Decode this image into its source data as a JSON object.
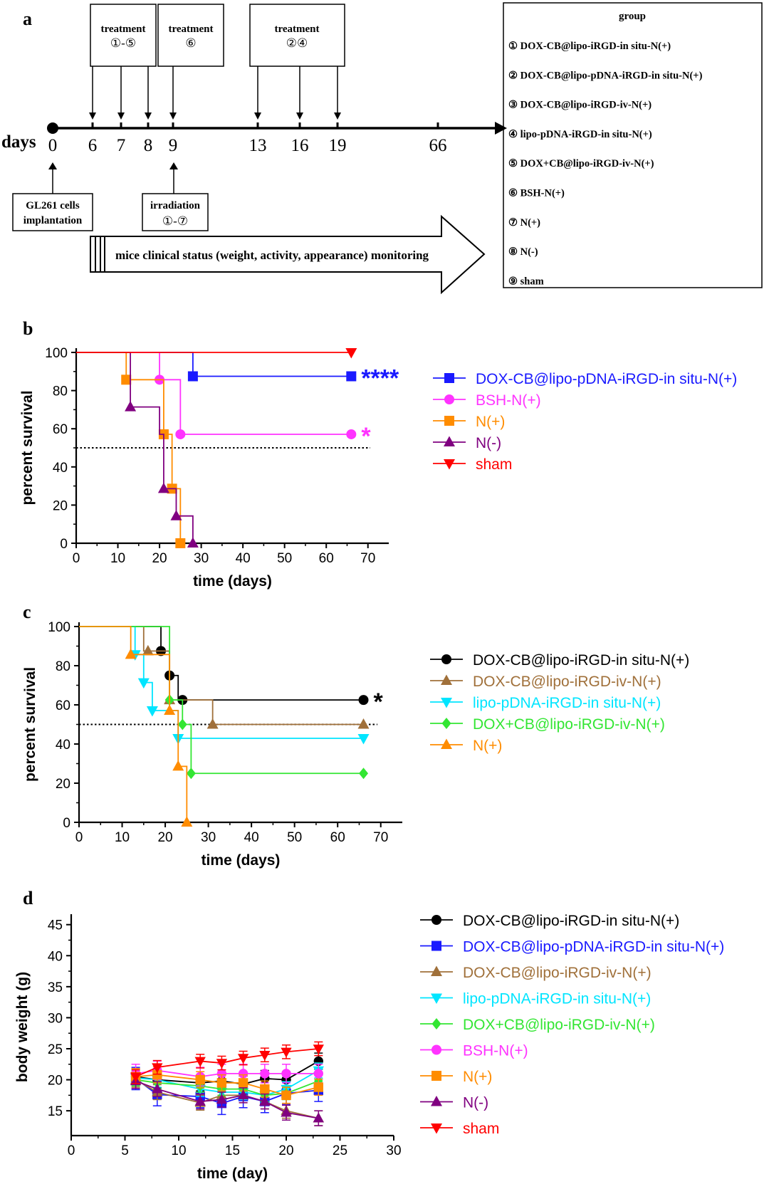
{
  "panel_a": {
    "label": "a",
    "days_label": "days",
    "day_ticks": [
      "0",
      "6",
      "7",
      "8",
      "9",
      "13",
      "16",
      "19",
      "66"
    ],
    "treatment_boxes": [
      {
        "title": "treatment",
        "sub": "①-⑤"
      },
      {
        "title": "treatment",
        "sub": "⑥"
      },
      {
        "title": "treatment",
        "sub": "②④"
      }
    ],
    "implantation_box": [
      "GL261 cells",
      "implantation"
    ],
    "irradiation_box": [
      "irradiation",
      "①-⑦"
    ],
    "monitoring_text": "mice clinical status (weight, activity, appearance) monitoring",
    "group_title": "group",
    "groups": [
      "① DOX-CB@lipo-iRGD-in situ-N(+)",
      "② DOX-CB@lipo-pDNA-iRGD-in situ-N(+)",
      "③ DOX-CB@lipo-iRGD-iv-N(+)",
      "④ lipo-pDNA-iRGD-in situ-N(+)",
      "⑤ DOX+CB@lipo-iRGD-iv-N(+)",
      "⑥ BSH-N(+)",
      "⑦ N(+)",
      "⑧ N(-)",
      "⑨ sham"
    ]
  },
  "colors": {
    "black": "#000000",
    "blue": "#1a1aff",
    "magenta": "#ff33ff",
    "orange": "#ff8c00",
    "purple": "#800080",
    "red": "#ff0000",
    "brown": "#a0703a",
    "cyan": "#00e5ff",
    "green": "#33e633"
  },
  "chart_data": [
    {
      "panel": "b",
      "type": "line",
      "step": true,
      "xlabel": "time (days)",
      "ylabel": "percent survival",
      "xlim": [
        0,
        75
      ],
      "ylim": [
        0,
        100
      ],
      "xticks": [
        "0",
        "10",
        "20",
        "30",
        "40",
        "50",
        "60",
        "70"
      ],
      "yticks": [
        "0",
        "20",
        "40",
        "60",
        "80",
        "100"
      ],
      "reference_line": 50,
      "series": [
        {
          "name": "DOX-CB@lipo-pDNA-iRGD-in situ-N(+)",
          "color": "#1a1aff",
          "marker": "square",
          "points": [
            [
              0,
              100
            ],
            [
              28,
              100
            ],
            [
              28,
              87.5
            ],
            [
              66,
              87.5
            ]
          ],
          "marks": [
            [
              28,
              87.5
            ],
            [
              66,
              87.5
            ]
          ],
          "annotation": "****"
        },
        {
          "name": "BSH-N(+)",
          "color": "#ff33ff",
          "marker": "circle",
          "points": [
            [
              0,
              100
            ],
            [
              20,
              100
            ],
            [
              20,
              85.7
            ],
            [
              25,
              85.7
            ],
            [
              25,
              57.1
            ],
            [
              66,
              57.1
            ]
          ],
          "marks": [
            [
              20,
              85.7
            ],
            [
              25,
              57.1
            ],
            [
              66,
              57.1
            ]
          ],
          "annotation": "*"
        },
        {
          "name": "N(+)",
          "color": "#ff8c00",
          "marker": "square",
          "points": [
            [
              0,
              100
            ],
            [
              12,
              100
            ],
            [
              12,
              85.7
            ],
            [
              21,
              85.7
            ],
            [
              21,
              57.1
            ],
            [
              23,
              57.1
            ],
            [
              23,
              28.6
            ],
            [
              25,
              28.6
            ],
            [
              25,
              0
            ]
          ],
          "marks": [
            [
              12,
              85.7
            ],
            [
              21,
              57.1
            ],
            [
              23,
              28.6
            ],
            [
              25,
              0
            ]
          ],
          "annotation": ""
        },
        {
          "name": "N(-)",
          "color": "#800080",
          "marker": "triangle",
          "points": [
            [
              0,
              100
            ],
            [
              13,
              100
            ],
            [
              13,
              71.4
            ],
            [
              20,
              71.4
            ],
            [
              20,
              57.1
            ],
            [
              21,
              57.1
            ],
            [
              21,
              28.6
            ],
            [
              24,
              28.6
            ],
            [
              24,
              14.3
            ],
            [
              28,
              14.3
            ],
            [
              28,
              0
            ]
          ],
          "marks": [
            [
              13,
              71.4
            ],
            [
              21,
              28.6
            ],
            [
              24,
              14.3
            ],
            [
              28,
              0
            ]
          ],
          "annotation": ""
        },
        {
          "name": "sham",
          "color": "#ff0000",
          "marker": "triangle-down",
          "points": [
            [
              0,
              100
            ],
            [
              66,
              100
            ]
          ],
          "marks": [
            [
              66,
              100
            ]
          ],
          "annotation": ""
        }
      ]
    },
    {
      "panel": "c",
      "type": "line",
      "step": true,
      "xlabel": "time (days)",
      "ylabel": "percent survival",
      "xlim": [
        0,
        75
      ],
      "ylim": [
        0,
        100
      ],
      "xticks": [
        "0",
        "10",
        "20",
        "30",
        "40",
        "50",
        "60",
        "70"
      ],
      "yticks": [
        "0",
        "20",
        "40",
        "60",
        "80",
        "100"
      ],
      "reference_line": 50,
      "series": [
        {
          "name": "DOX-CB@lipo-iRGD-in situ-N(+)",
          "color": "#000000",
          "marker": "circle",
          "points": [
            [
              0,
              100
            ],
            [
              19,
              100
            ],
            [
              19,
              87.5
            ],
            [
              21,
              87.5
            ],
            [
              21,
              75
            ],
            [
              23,
              75
            ],
            [
              23,
              62.5
            ],
            [
              66,
              62.5
            ]
          ],
          "marks": [
            [
              19,
              87.5
            ],
            [
              21,
              75
            ],
            [
              24,
              62.5
            ],
            [
              66,
              62.5
            ]
          ],
          "annotation": "*"
        },
        {
          "name": "DOX-CB@lipo-iRGD-iv-N(+)",
          "color": "#a0703a",
          "marker": "triangle",
          "points": [
            [
              0,
              100
            ],
            [
              15,
              100
            ],
            [
              15,
              87.5
            ],
            [
              21,
              87.5
            ],
            [
              21,
              62.5
            ],
            [
              31,
              62.5
            ],
            [
              31,
              50
            ],
            [
              66,
              50
            ]
          ],
          "marks": [
            [
              16,
              87.5
            ],
            [
              21,
              62.5
            ],
            [
              31,
              50
            ],
            [
              66,
              50
            ]
          ],
          "annotation": ""
        },
        {
          "name": "lipo-pDNA-iRGD-in situ-N(+)",
          "color": "#00e5ff",
          "marker": "triangle-down",
          "points": [
            [
              0,
              100
            ],
            [
              13,
              100
            ],
            [
              13,
              85.7
            ],
            [
              15,
              85.7
            ],
            [
              15,
              71.4
            ],
            [
              17,
              71.4
            ],
            [
              17,
              57.1
            ],
            [
              23,
              57.1
            ],
            [
              23,
              42.9
            ],
            [
              66,
              42.9
            ]
          ],
          "marks": [
            [
              13,
              85.7
            ],
            [
              15,
              71.4
            ],
            [
              17,
              57.1
            ],
            [
              23,
              42.9
            ],
            [
              66,
              42.9
            ]
          ],
          "annotation": ""
        },
        {
          "name": "DOX+CB@lipo-iRGD-iv-N(+)",
          "color": "#33e633",
          "marker": "diamond",
          "points": [
            [
              0,
              100
            ],
            [
              21,
              100
            ],
            [
              21,
              62.5
            ],
            [
              24,
              62.5
            ],
            [
              24,
              50
            ],
            [
              26,
              50
            ],
            [
              26,
              25
            ],
            [
              66,
              25
            ]
          ],
          "marks": [
            [
              21,
              62.5
            ],
            [
              24,
              50
            ],
            [
              26,
              25
            ],
            [
              66,
              25
            ]
          ],
          "annotation": ""
        },
        {
          "name": "N(+)",
          "color": "#ff8c00",
          "marker": "triangle",
          "points": [
            [
              0,
              100
            ],
            [
              12,
              100
            ],
            [
              12,
              85.7
            ],
            [
              21,
              85.7
            ],
            [
              21,
              57.1
            ],
            [
              23,
              57.1
            ],
            [
              23,
              28.6
            ],
            [
              25,
              28.6
            ],
            [
              25,
              0
            ]
          ],
          "marks": [
            [
              12,
              85.7
            ],
            [
              21,
              57.1
            ],
            [
              23,
              28.6
            ],
            [
              25,
              0
            ]
          ],
          "annotation": ""
        }
      ]
    },
    {
      "panel": "d",
      "type": "line",
      "step": false,
      "xlabel": "time (day)",
      "ylabel": "body weight (g)",
      "xlim": [
        0,
        30
      ],
      "ylim": [
        11,
        46
      ],
      "xticks": [
        "0",
        "5",
        "10",
        "15",
        "20",
        "25",
        "30"
      ],
      "yticks": [
        "15",
        "20",
        "25",
        "30",
        "35",
        "40",
        "45"
      ],
      "x": [
        6,
        8,
        12,
        14,
        16,
        18,
        20,
        23
      ],
      "series": [
        {
          "name": "DOX-CB@lipo-iRGD-in situ-N(+)",
          "color": "#000000",
          "marker": "circle",
          "values": [
            20.5,
            20.0,
            19.5,
            19.8,
            19.3,
            20.2,
            20.0,
            23.0
          ],
          "err": 1.3
        },
        {
          "name": "DOX-CB@lipo-pDNA-iRGD-in situ-N(+)",
          "color": "#1a1aff",
          "marker": "square",
          "values": [
            20.2,
            17.6,
            17.3,
            16.2,
            17.3,
            16.5,
            17.8,
            18.3
          ],
          "err": 1.8
        },
        {
          "name": "DOX-CB@lipo-iRGD-iv-N(+)",
          "color": "#a0703a",
          "marker": "triangle",
          "values": [
            20.0,
            18.0,
            16.3,
            17.5,
            17.5,
            16.5,
            15.0,
            13.8
          ],
          "err": 1.2
        },
        {
          "name": "lipo-pDNA-iRGD-in situ-N(+)",
          "color": "#00e5ff",
          "marker": "triangle-down",
          "values": [
            20.3,
            20.0,
            18.5,
            18.0,
            18.0,
            17.5,
            18.5,
            21.5
          ],
          "err": 1.2
        },
        {
          "name": "DOX+CB@lipo-iRGD-iv-N(+)",
          "color": "#33e633",
          "marker": "diamond",
          "values": [
            20.0,
            19.5,
            19.0,
            18.5,
            18.5,
            17.5,
            17.8,
            19.8
          ],
          "err": 1.0
        },
        {
          "name": "BSH-N(+)",
          "color": "#ff33ff",
          "marker": "circle",
          "values": [
            21.0,
            21.5,
            20.5,
            21.0,
            21.0,
            21.0,
            21.0,
            21.0
          ],
          "err": 1.5
        },
        {
          "name": "N(+)",
          "color": "#ff8c00",
          "marker": "square",
          "values": [
            20.5,
            20.8,
            20.0,
            19.5,
            19.5,
            18.5,
            17.5,
            18.8
          ],
          "err": 1.3
        },
        {
          "name": "N(-)",
          "color": "#800080",
          "marker": "triangle",
          "values": [
            19.8,
            18.5,
            16.5,
            16.8,
            17.5,
            16.5,
            14.7,
            13.8
          ],
          "err": 1.2
        },
        {
          "name": "sham",
          "color": "#ff0000",
          "marker": "triangle-down",
          "values": [
            20.5,
            22.0,
            23.0,
            22.7,
            23.5,
            24.0,
            24.5,
            25.0
          ],
          "err": 1.1
        }
      ]
    }
  ]
}
